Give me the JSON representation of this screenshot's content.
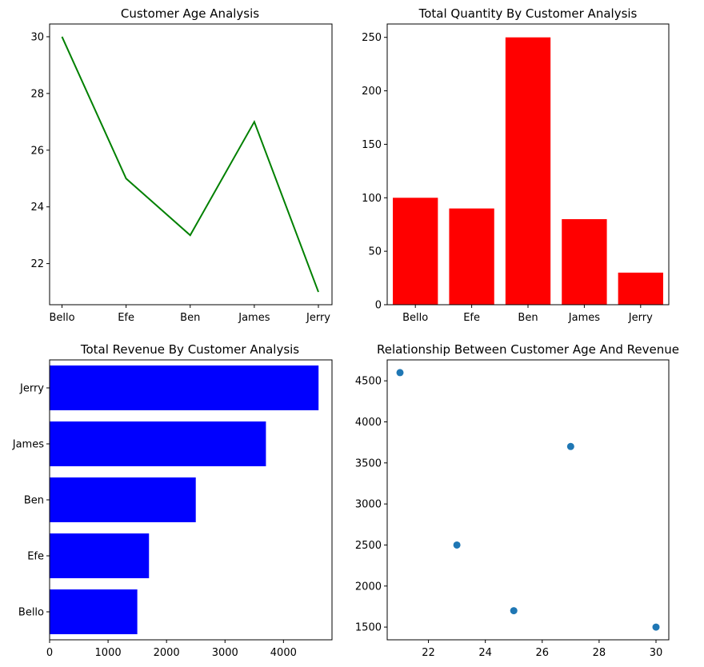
{
  "chart_data": [
    {
      "type": "line",
      "title": "Customer Age Analysis",
      "categories": [
        "Bello",
        "Efe",
        "Ben",
        "James",
        "Jerry"
      ],
      "values": [
        30,
        25,
        23,
        27,
        21
      ],
      "yticks": [
        22,
        24,
        26,
        28,
        30
      ],
      "ylim": [
        20.55,
        30.45
      ],
      "color": "#008000",
      "grid": false
    },
    {
      "type": "bar",
      "title": "Total Quantity By Customer Analysis",
      "categories": [
        "Bello",
        "Efe",
        "Ben",
        "James",
        "Jerry"
      ],
      "values": [
        100,
        90,
        250,
        80,
        30
      ],
      "yticks": [
        0,
        50,
        100,
        150,
        200,
        250
      ],
      "ylim": [
        0,
        262.5
      ],
      "color": "#ff0000",
      "grid": false
    },
    {
      "type": "bar",
      "orientation": "horizontal",
      "title": "Total Revenue By Customer Analysis",
      "categories": [
        "Bello",
        "Efe",
        "Ben",
        "James",
        "Jerry"
      ],
      "values": [
        1500,
        1700,
        2500,
        3700,
        4600
      ],
      "xticks": [
        0,
        1000,
        2000,
        3000,
        4000
      ],
      "xlim": [
        0,
        4830
      ],
      "color": "#0000ff",
      "grid": false
    },
    {
      "type": "scatter",
      "title": "Relationship Between Customer Age And Revenue",
      "x": [
        30,
        25,
        23,
        27,
        21
      ],
      "y": [
        1500,
        1700,
        2500,
        3700,
        4600
      ],
      "xticks": [
        22,
        24,
        26,
        28,
        30
      ],
      "yticks": [
        1500,
        2000,
        2500,
        3000,
        3500,
        4000,
        4500
      ],
      "xlim": [
        20.55,
        30.45
      ],
      "ylim": [
        1345,
        4755
      ],
      "color": "#1f77b4",
      "grid": false
    }
  ]
}
